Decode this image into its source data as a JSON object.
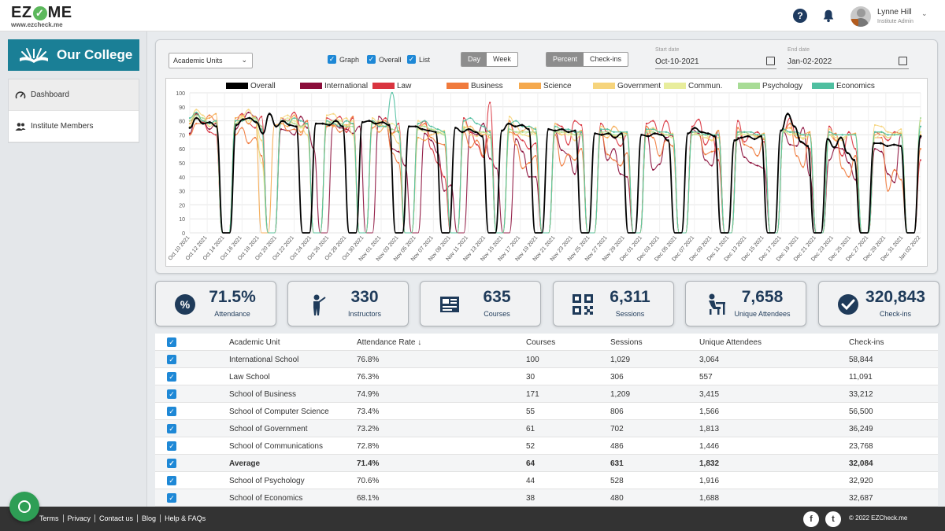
{
  "header": {
    "logo_prefix": "EZ",
    "logo_suffix": "ME",
    "logo_url": "www.ezcheck.me",
    "user_name": "Lynne Hill",
    "user_role": "Institute Admin"
  },
  "sidebar": {
    "college_name": "Our College",
    "items": [
      {
        "label": "Dashboard",
        "icon": "gauge-icon",
        "active": true
      },
      {
        "label": "Institute Members",
        "icon": "people-icon",
        "active": false
      }
    ]
  },
  "controls": {
    "unit_select": "Academic Units",
    "checkboxes": [
      "Graph",
      "Overall",
      "List"
    ],
    "granularity": [
      "Day",
      "Week"
    ],
    "granularity_selected": "Day",
    "metric": [
      "Percent",
      "Check-ins"
    ],
    "metric_selected": "Percent",
    "start_label": "Start date",
    "start_value": "Oct-10-2021",
    "end_label": "End date",
    "end_value": "Jan-02-2022"
  },
  "chart_data": {
    "type": "line",
    "ylim": [
      0,
      100
    ],
    "yticks": [
      0,
      10,
      20,
      30,
      40,
      50,
      60,
      70,
      80,
      90,
      100
    ],
    "x_labels": [
      "Oct 10 2021",
      "Oct 12 2021",
      "Oct 14 2021",
      "Oct 16 2021",
      "Oct 18 2021",
      "Oct 20 2021",
      "Oct 22 2021",
      "Oct 24 2021",
      "Oct 26 2021",
      "Oct 28 2021",
      "Oct 30 2021",
      "Nov 01 2021",
      "Nov 03 2021",
      "Nov 05 2021",
      "Nov 07 2021",
      "Nov 09 2021",
      "Nov 11 2021",
      "Nov 13 2021",
      "Nov 15 2021",
      "Nov 17 2021",
      "Nov 19 2021",
      "Nov 21 2021",
      "Nov 23 2021",
      "Nov 25 2021",
      "Nov 27 2021",
      "Nov 29 2021",
      "Dec 01 2021",
      "Dec 03 2021",
      "Dec 05 2021",
      "Dec 07 2021",
      "Dec 09 2021",
      "Dec 11 2021",
      "Dec 13 2021",
      "Dec 15 2021",
      "Dec 17 2021",
      "Dec 19 2021",
      "Dec 21 2021",
      "Dec 23 2021",
      "Dec 25 2021",
      "Dec 27 2021",
      "Dec 29 2021",
      "Dec 31 2021",
      "Jan 02 2022"
    ],
    "legend_position": "top",
    "series": [
      {
        "name": "Overall",
        "color": "#000000",
        "values": [
          75,
          82,
          78,
          79,
          76,
          0,
          0,
          77,
          81,
          82,
          79,
          71,
          85,
          76,
          80,
          77,
          76,
          0,
          0,
          78,
          78,
          77,
          80,
          76,
          0,
          0,
          79,
          80,
          78,
          79,
          77,
          0,
          0,
          76,
          76,
          74,
          73,
          72,
          0,
          0,
          75,
          72,
          74,
          72,
          69,
          0,
          0,
          73,
          78,
          76,
          77,
          74,
          0,
          0,
          74,
          73,
          74,
          72,
          73,
          0,
          0,
          71,
          70,
          71,
          68,
          71,
          0,
          0,
          70,
          69,
          71,
          70,
          66,
          0,
          0,
          71,
          75,
          72,
          71,
          69,
          0,
          0,
          66,
          68,
          69,
          67,
          69,
          0,
          0,
          73,
          85,
          76,
          65,
          62,
          0,
          0,
          67,
          61,
          68,
          57,
          52,
          0,
          0,
          64,
          64,
          62,
          63,
          62,
          0,
          0,
          69
        ]
      },
      {
        "name": "International",
        "color": "#8b0d3a",
        "values": [
          71,
          85,
          80,
          74,
          78,
          0,
          0,
          74,
          80,
          86,
          83,
          76,
          0,
          0,
          74,
          73,
          70,
          83,
          75,
          60,
          0,
          0,
          78,
          75,
          74,
          71,
          76,
          0,
          0,
          83,
          78,
          60,
          58,
          48,
          0,
          0,
          71,
          66,
          57,
          30,
          34,
          0,
          0,
          72,
          70,
          78,
          53,
          46,
          0,
          0,
          67,
          58,
          40,
          40,
          0,
          0,
          72,
          59,
          56,
          42,
          72,
          0,
          0,
          73,
          52,
          60,
          42,
          40,
          0,
          0,
          72,
          45,
          49,
          68,
          70,
          0,
          0,
          74,
          71,
          52,
          48,
          73,
          0,
          0,
          68,
          54,
          50,
          48,
          46,
          0,
          0,
          72,
          63,
          62,
          75,
          41,
          0,
          0,
          52,
          61,
          60,
          50,
          38,
          0,
          0,
          60,
          58,
          42,
          36,
          70,
          0,
          0,
          68
        ]
      },
      {
        "name": "Law",
        "color": "#d9343f",
        "values": [
          80,
          82,
          79,
          72,
          70,
          0,
          0,
          80,
          85,
          78,
          75,
          83,
          0,
          0,
          82,
          80,
          86,
          76,
          80,
          0,
          0,
          82,
          80,
          83,
          72,
          82,
          0,
          0,
          80,
          76,
          82,
          71,
          78,
          0,
          0,
          76,
          80,
          60,
          50,
          40,
          0,
          0,
          82,
          72,
          63,
          54,
          93,
          0,
          0,
          78,
          70,
          66,
          60,
          64,
          0,
          0,
          78,
          76,
          63,
          80,
          77,
          0,
          0,
          78,
          72,
          68,
          62,
          70,
          0,
          0,
          78,
          80,
          70,
          80,
          69,
          0,
          0,
          76,
          81,
          63,
          70,
          52,
          0,
          0,
          80,
          65,
          70,
          72,
          65,
          0,
          0,
          72,
          82,
          68,
          64,
          60,
          0,
          0,
          76,
          66,
          55,
          72,
          60,
          0,
          0,
          72,
          70,
          66,
          72,
          71,
          0,
          0,
          52
        ]
      },
      {
        "name": "Business",
        "color": "#f07a3c",
        "values": [
          70,
          78,
          78,
          84,
          80,
          0,
          0,
          70,
          75,
          64,
          68,
          55,
          0,
          0,
          80,
          73,
          74,
          70,
          80,
          0,
          0,
          76,
          77,
          72,
          75,
          83,
          0,
          0,
          75,
          79,
          80,
          57,
          50,
          0,
          0,
          74,
          78,
          68,
          64,
          63,
          0,
          0,
          72,
          61,
          66,
          55,
          70,
          0,
          0,
          80,
          63,
          46,
          50,
          55,
          0,
          0,
          70,
          48,
          56,
          52,
          60,
          0,
          0,
          72,
          56,
          52,
          48,
          57,
          0,
          0,
          76,
          68,
          55,
          66,
          62,
          0,
          0,
          72,
          70,
          56,
          58,
          60,
          0,
          0,
          75,
          63,
          61,
          55,
          67,
          0,
          0,
          72,
          78,
          55,
          47,
          72,
          0,
          0,
          70,
          71,
          46,
          40,
          55,
          0,
          0,
          68,
          68,
          30,
          45,
          38,
          0,
          0,
          60
        ]
      },
      {
        "name": "Science",
        "color": "#f5a94e",
        "values": [
          78,
          86,
          80,
          82,
          85,
          0,
          0,
          82,
          84,
          78,
          83,
          0,
          0,
          77,
          78,
          76,
          84,
          72,
          78,
          0,
          0,
          80,
          76,
          78,
          77,
          78,
          0,
          0,
          80,
          72,
          76,
          71,
          73,
          0,
          0,
          68,
          66,
          70,
          72,
          70,
          0,
          0,
          75,
          76,
          72,
          70,
          73,
          0,
          0,
          72,
          70,
          73,
          76,
          71,
          0,
          0,
          72,
          70,
          72,
          70,
          73,
          0,
          0,
          70,
          68,
          76,
          72,
          71,
          0,
          0,
          70,
          74,
          72,
          70,
          68,
          0,
          0,
          72,
          70,
          68,
          66,
          73,
          0,
          0,
          70,
          72,
          70,
          69,
          71,
          0,
          0,
          74,
          75,
          68,
          70,
          72,
          0,
          0,
          70,
          66,
          68,
          70,
          71,
          0,
          0,
          70,
          72,
          68,
          70,
          71,
          0,
          0,
          70
        ]
      },
      {
        "name": "Government",
        "color": "#f6d47c",
        "values": [
          80,
          88,
          84,
          76,
          79,
          0,
          0,
          78,
          83,
          88,
          80,
          66,
          0,
          0,
          82,
          84,
          78,
          76,
          70,
          0,
          0,
          84,
          85,
          80,
          82,
          70,
          0,
          0,
          82,
          77,
          76,
          70,
          64,
          0,
          0,
          80,
          76,
          74,
          71,
          73,
          0,
          0,
          80,
          70,
          69,
          72,
          68,
          0,
          0,
          83,
          76,
          70,
          69,
          75,
          0,
          0,
          78,
          70,
          72,
          66,
          70,
          0,
          0,
          76,
          74,
          69,
          70,
          72,
          0,
          0,
          73,
          75,
          72,
          70,
          71,
          0,
          0,
          70,
          72,
          70,
          66,
          68,
          0,
          0,
          72,
          70,
          70,
          68,
          70,
          0,
          0,
          73,
          70,
          71,
          67,
          70,
          0,
          0,
          74,
          68,
          66,
          70,
          70,
          0,
          0,
          77,
          76,
          72,
          71,
          74,
          0,
          0,
          80
        ]
      },
      {
        "name": "Commun.",
        "color": "#e8ed9c",
        "values": [
          76,
          84,
          80,
          78,
          76,
          0,
          0,
          80,
          82,
          80,
          82,
          50,
          0,
          0,
          80,
          82,
          80,
          75,
          78,
          0,
          0,
          80,
          78,
          80,
          76,
          80,
          0,
          0,
          78,
          80,
          78,
          78,
          75,
          0,
          0,
          74,
          72,
          74,
          74,
          71,
          0,
          0,
          76,
          74,
          72,
          72,
          70,
          0,
          0,
          74,
          72,
          70,
          72,
          70,
          0,
          0,
          72,
          72,
          70,
          70,
          72,
          0,
          0,
          72,
          70,
          70,
          68,
          70,
          0,
          0,
          72,
          72,
          70,
          70,
          68,
          0,
          0,
          72,
          70,
          68,
          70,
          70,
          0,
          0,
          70,
          70,
          70,
          68,
          68,
          0,
          0,
          72,
          72,
          70,
          68,
          70,
          0,
          0,
          70,
          68,
          68,
          70,
          70,
          0,
          0,
          68,
          70,
          68,
          70,
          72,
          0,
          0,
          72
        ]
      },
      {
        "name": "Psychology",
        "color": "#a8dc96",
        "values": [
          80,
          84,
          82,
          78,
          80,
          0,
          0,
          78,
          80,
          82,
          82,
          76,
          0,
          0,
          80,
          80,
          78,
          76,
          78,
          0,
          0,
          78,
          80,
          78,
          76,
          76,
          0,
          0,
          78,
          78,
          76,
          74,
          72,
          0,
          0,
          76,
          76,
          74,
          72,
          70,
          0,
          0,
          74,
          74,
          72,
          72,
          70,
          0,
          0,
          74,
          72,
          72,
          72,
          72,
          0,
          0,
          72,
          72,
          72,
          70,
          70,
          0,
          0,
          72,
          72,
          70,
          70,
          70,
          0,
          0,
          72,
          72,
          70,
          70,
          70,
          0,
          0,
          70,
          70,
          70,
          70,
          70,
          0,
          0,
          70,
          72,
          70,
          70,
          70,
          0,
          0,
          72,
          72,
          70,
          70,
          70,
          0,
          0,
          70,
          70,
          70,
          70,
          70,
          0,
          0,
          72,
          72,
          70,
          70,
          70,
          0,
          0,
          82
        ]
      },
      {
        "name": "Economics",
        "color": "#4fbfa0",
        "values": [
          82,
          86,
          80,
          78,
          80,
          0,
          0,
          80,
          80,
          82,
          80,
          74,
          0,
          0,
          80,
          78,
          82,
          80,
          78,
          0,
          0,
          80,
          78,
          76,
          80,
          78,
          0,
          0,
          80,
          76,
          76,
          100,
          72,
          0,
          0,
          78,
          80,
          76,
          74,
          72,
          0,
          0,
          80,
          82,
          78,
          76,
          72,
          0,
          0,
          78,
          80,
          76,
          76,
          74,
          0,
          0,
          76,
          74,
          74,
          72,
          72,
          0,
          0,
          74,
          74,
          72,
          72,
          72,
          0,
          0,
          74,
          74,
          72,
          72,
          70,
          0,
          0,
          72,
          72,
          70,
          70,
          70,
          0,
          0,
          72,
          72,
          72,
          70,
          70,
          0,
          0,
          74,
          72,
          72,
          70,
          70,
          0,
          0,
          72,
          70,
          70,
          70,
          70,
          0,
          0,
          72,
          72,
          70,
          70,
          70,
          0,
          0,
          76
        ]
      }
    ]
  },
  "stats": [
    {
      "value": "71.5%",
      "label": "Attendance",
      "icon": "percent-icon"
    },
    {
      "value": "330",
      "label": "Instructors",
      "icon": "instructor-icon"
    },
    {
      "value": "635",
      "label": "Courses",
      "icon": "courses-icon"
    },
    {
      "value": "6,311",
      "label": "Sessions",
      "icon": "qr-code-icon"
    },
    {
      "value": "7,658",
      "label": "Unique Attendees",
      "icon": "attendee-icon"
    },
    {
      "value": "320,843",
      "label": "Check-ins",
      "icon": "checkmark-icon"
    }
  ],
  "table": {
    "headers": [
      "Academic Unit",
      "Attendance Rate ↓",
      "Courses",
      "Sessions",
      "Unique Attendees",
      "Check-ins"
    ],
    "rows": [
      [
        "International School",
        "76.8%",
        "100",
        "1,029",
        "3,064",
        "58,844"
      ],
      [
        "Law School",
        "76.3%",
        "30",
        "306",
        "557",
        "11,091"
      ],
      [
        "School of Business",
        "74.9%",
        "171",
        "1,209",
        "3,415",
        "33,212"
      ],
      [
        "School of Computer Science",
        "73.4%",
        "55",
        "806",
        "1,566",
        "56,500"
      ],
      [
        "School of Government",
        "73.2%",
        "61",
        "702",
        "1,813",
        "36,249"
      ],
      [
        "School of Communications",
        "72.8%",
        "52",
        "486",
        "1,446",
        "23,768"
      ],
      [
        "Average",
        "71.4%",
        "64",
        "631",
        "1,832",
        "32,084"
      ],
      [
        "School of Psychology",
        "70.6%",
        "44",
        "528",
        "1,916",
        "32,920"
      ],
      [
        "School of Economics",
        "68.1%",
        "38",
        "480",
        "1,688",
        "32,687"
      ]
    ]
  },
  "footer": {
    "links": [
      "Terms",
      "Privacy",
      "Contact us",
      "Blog",
      "Help & FAQs"
    ],
    "copyright": "© 2022 EZCheck.me"
  }
}
